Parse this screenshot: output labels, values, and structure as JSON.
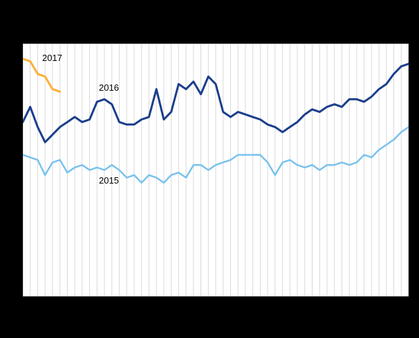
{
  "page": {
    "background_color": "#000000",
    "plot_background_color": "#ffffff"
  },
  "chart_data": {
    "type": "line",
    "title": "",
    "xlabel": "",
    "ylabel": "",
    "ylim": [
      0,
      100
    ],
    "grid": "vertical",
    "grid_color": "#d9d9d9",
    "legend_position": "inline-labels",
    "x": [
      1,
      2,
      3,
      4,
      5,
      6,
      7,
      8,
      9,
      10,
      11,
      12,
      13,
      14,
      15,
      16,
      17,
      18,
      19,
      20,
      21,
      22,
      23,
      24,
      25,
      26,
      27,
      28,
      29,
      30,
      31,
      32,
      33,
      34,
      35,
      36,
      37,
      38,
      39,
      40,
      41,
      42,
      43,
      44,
      45,
      46,
      47,
      48,
      49,
      50,
      51,
      52,
      53
    ],
    "series": [
      {
        "name": "2015",
        "color": "#79c2ec",
        "stroke_width": 2.5,
        "values": [
          56,
          55,
          54,
          48,
          53,
          54,
          49,
          51,
          52,
          50,
          51,
          50,
          52,
          50,
          47,
          48,
          45,
          48,
          47,
          45,
          48,
          49,
          47,
          52,
          52,
          50,
          52,
          53,
          54,
          56,
          56,
          56,
          56,
          53,
          48,
          53,
          54,
          52,
          51,
          52,
          50,
          52,
          52,
          53,
          52,
          53,
          56,
          55,
          58,
          60,
          62,
          65,
          67
        ]
      },
      {
        "name": "2016",
        "color": "#1b3e8c",
        "stroke_width": 3,
        "values": [
          69,
          75,
          67,
          61,
          64,
          67,
          69,
          71,
          69,
          70,
          77,
          78,
          76,
          69,
          68,
          68,
          70,
          71,
          82,
          70,
          73,
          84,
          82,
          85,
          80,
          87,
          84,
          73,
          71,
          73,
          72,
          71,
          70,
          68,
          67,
          65,
          67,
          69,
          72,
          74,
          73,
          75,
          76,
          75,
          78,
          78,
          77,
          79,
          82,
          84,
          88,
          91,
          92
        ]
      },
      {
        "name": "2017",
        "color": "#fbb034",
        "stroke_width": 3,
        "values": [
          94,
          93,
          88,
          87,
          82,
          81
        ]
      }
    ]
  }
}
